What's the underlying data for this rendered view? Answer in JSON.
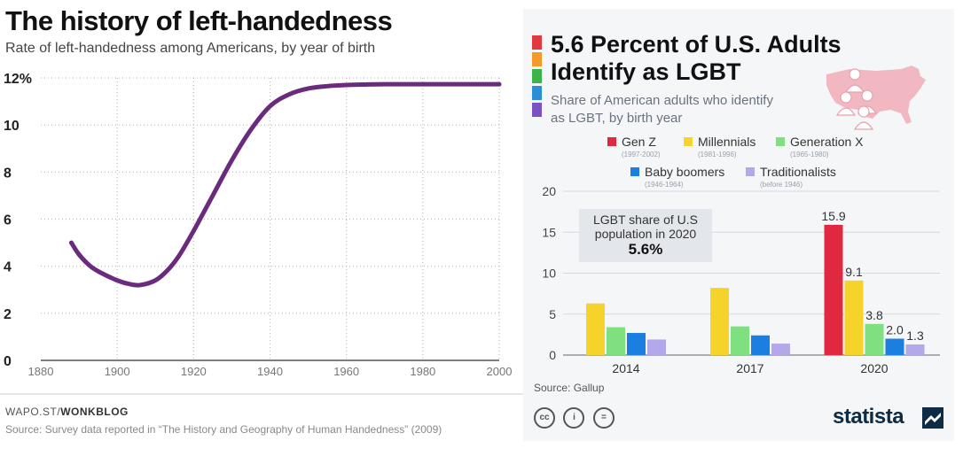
{
  "left": {
    "title": "The history of left-handedness",
    "subtitle": "Rate of left-handedness among Americans, by year of birth",
    "credit_prefix": "WAPO.ST/",
    "credit_bold": "WONKBLOG",
    "source": "Source: Survey data reported in “The History and Geography of Human Handedness” (2009)"
  },
  "right": {
    "title": "5.6 Percent of U.S. Adults Identify as LGBT",
    "subtitle": "Share of American adults who identify as LGBT, by birth year",
    "callout_line1": "LGBT share of U.S",
    "callout_line2": "population in 2020",
    "callout_value": "5.6%",
    "source": "Source: Gallup",
    "cc_labels": [
      "cc",
      "i",
      "="
    ],
    "brand": "statista",
    "flag_colors": [
      "#e03a3e",
      "#f39a2b",
      "#39b54a",
      "#2b8fd8",
      "#7b52c2"
    ],
    "legend": [
      {
        "name": "Gen Z",
        "years": "(1997-2002)",
        "color": "#e0283f"
      },
      {
        "name": "Millennials",
        "years": "(1981-1996)",
        "color": "#f6d32b"
      },
      {
        "name": "Generation X",
        "years": "(1965-1980)",
        "color": "#7fe07f"
      },
      {
        "name": "Baby boomers",
        "years": "(1946-1964)",
        "color": "#1a7fe0"
      },
      {
        "name": "Traditionalists",
        "years": "(before 1946)",
        "color": "#b3a8ea"
      }
    ]
  },
  "chart_data": [
    {
      "type": "line",
      "title": "The history of left-handedness",
      "subtitle": "Rate of left-handedness among Americans, by year of birth",
      "xlim": [
        1880,
        2000
      ],
      "ylim": [
        0,
        12
      ],
      "xticks": [
        "1880",
        "1900",
        "1920",
        "1940",
        "1960",
        "1980",
        "2000"
      ],
      "yticks": [
        "0",
        "2",
        "4",
        "6",
        "8",
        "10",
        "12%"
      ],
      "color": "#6a2a7e",
      "x": [
        1888,
        1890,
        1893,
        1896,
        1900,
        1903,
        1906,
        1910,
        1913,
        1916,
        1920,
        1925,
        1930,
        1935,
        1940,
        1945,
        1950,
        1955,
        1960,
        1965,
        1970,
        1980,
        1990,
        2000
      ],
      "y": [
        5.0,
        4.5,
        4.0,
        3.7,
        3.4,
        3.25,
        3.2,
        3.4,
        3.8,
        4.4,
        5.5,
        7.0,
        8.5,
        9.8,
        10.8,
        11.3,
        11.55,
        11.65,
        11.7,
        11.72,
        11.73,
        11.73,
        11.73,
        11.73
      ],
      "grid": true
    },
    {
      "type": "bar",
      "title": "5.6 Percent of U.S. Adults Identify as LGBT",
      "categories": [
        "2014",
        "2017",
        "2020"
      ],
      "ylim": [
        0,
        20
      ],
      "yticks": [
        "0",
        "5",
        "10",
        "15",
        "20"
      ],
      "series": [
        {
          "name": "Gen Z",
          "values": [
            null,
            null,
            15.9
          ]
        },
        {
          "name": "Millennials",
          "values": [
            6.3,
            8.2,
            9.1
          ]
        },
        {
          "name": "Generation X",
          "values": [
            3.4,
            3.5,
            3.8
          ]
        },
        {
          "name": "Baby boomers",
          "values": [
            2.7,
            2.4,
            2.0
          ]
        },
        {
          "name": "Traditionalists",
          "values": [
            1.9,
            1.4,
            1.3
          ]
        }
      ],
      "labeled_category": "2020",
      "data_labels": [
        "15.9",
        "9.1",
        "3.8",
        "2.0",
        "1.3"
      ],
      "legend_position": "top"
    }
  ]
}
